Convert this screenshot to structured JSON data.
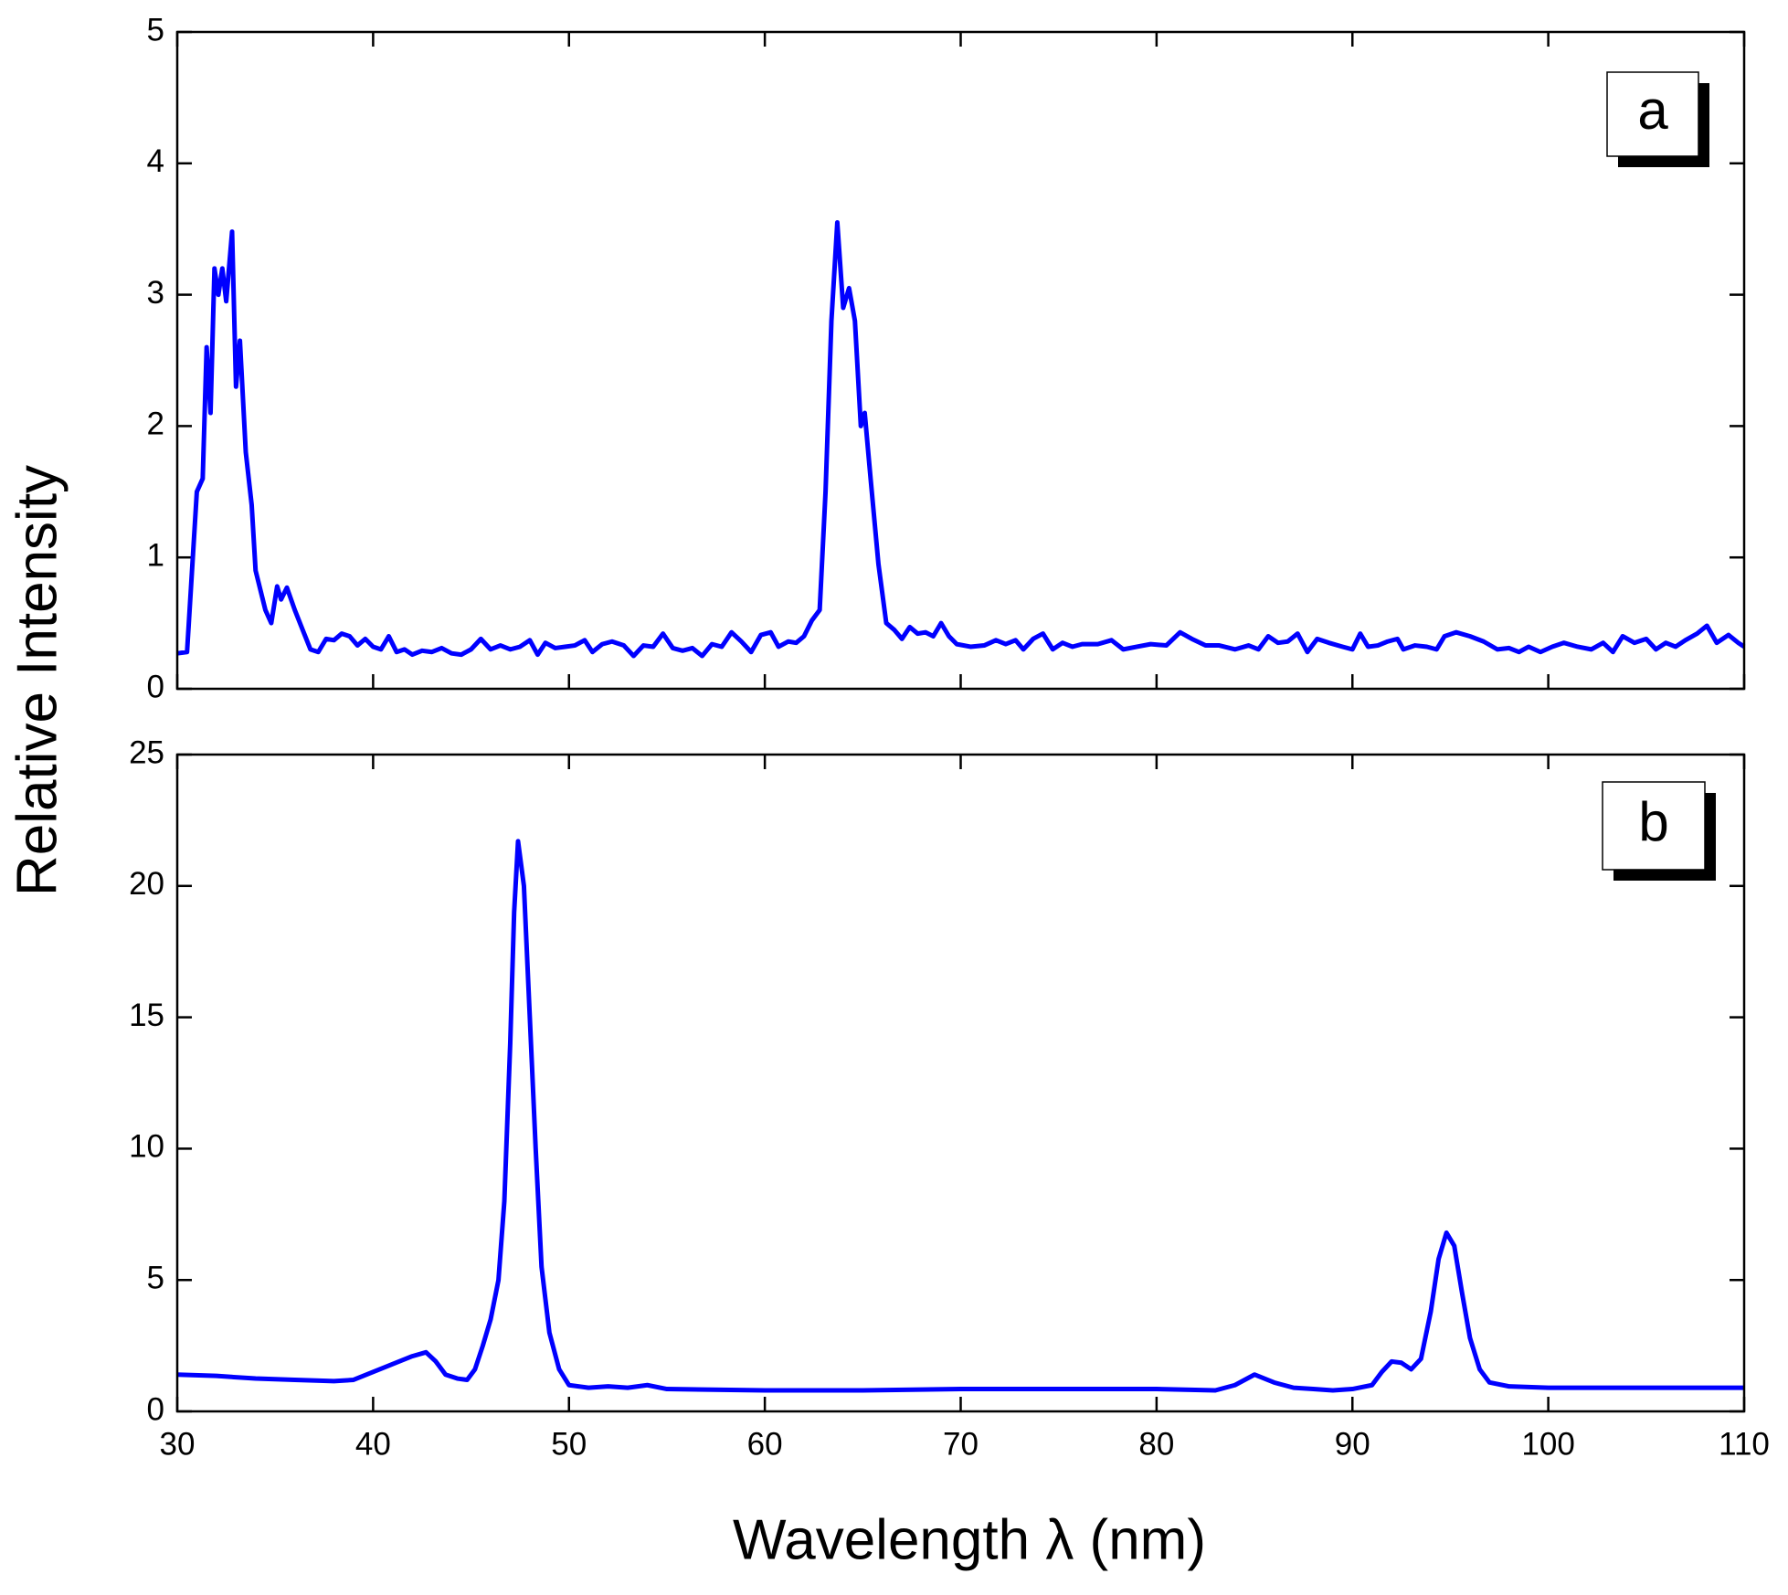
{
  "xlabel": "Wavelength λ (nm)",
  "ylabel": "Relative Intensity",
  "chart_data": [
    {
      "type": "line",
      "annotation": "a",
      "xlim": [
        30,
        110
      ],
      "xticks": [
        30,
        40,
        50,
        60,
        70,
        80,
        90,
        100,
        110
      ],
      "ylim": [
        0,
        5
      ],
      "yticks": [
        0,
        1,
        2,
        3,
        4,
        5
      ],
      "series": [
        {
          "color": "#0000ff",
          "x": [
            30,
            30.5,
            31,
            31.3,
            31.5,
            31.7,
            31.9,
            32.1,
            32.3,
            32.5,
            32.8,
            33,
            33.2,
            33.5,
            33.8,
            34,
            34.5,
            34.8,
            35.1,
            35.3,
            35.6,
            36,
            36.4,
            36.8,
            37.2,
            37.6,
            38,
            38.4,
            38.8,
            39.2,
            39.6,
            40,
            40.4,
            40.8,
            41.2,
            41.6,
            42,
            42.5,
            43,
            43.5,
            44,
            44.5,
            45,
            45.5,
            46,
            46.5,
            47,
            47.5,
            48,
            48.4,
            48.8,
            49.3,
            49.8,
            50.3,
            50.8,
            51.2,
            51.7,
            52.2,
            52.8,
            53.3,
            53.8,
            54.3,
            54.8,
            55.3,
            55.8,
            56.3,
            56.8,
            57.3,
            57.8,
            58.3,
            58.8,
            59.3,
            59.8,
            60.3,
            60.7,
            61.2,
            61.6,
            62,
            62.4,
            62.8,
            63.1,
            63.4,
            63.7,
            64,
            64.3,
            64.6,
            64.9,
            65.1,
            65.4,
            65.8,
            66.2,
            66.6,
            67,
            67.4,
            67.8,
            68.2,
            68.6,
            69,
            69.4,
            69.8,
            70.5,
            71.2,
            71.8,
            72.3,
            72.8,
            73.2,
            73.7,
            74.2,
            74.7,
            75.2,
            75.7,
            76.2,
            77,
            77.7,
            78.3,
            79,
            79.7,
            80.5,
            81.2,
            81.8,
            82.5,
            83.2,
            84,
            84.7,
            85.2,
            85.7,
            86.2,
            86.7,
            87.2,
            87.7,
            88.2,
            88.8,
            89.5,
            90,
            90.4,
            90.8,
            91.3,
            91.8,
            92.3,
            92.6,
            93.2,
            93.8,
            94.3,
            94.7,
            95.3,
            96,
            96.7,
            97.4,
            98,
            98.5,
            99,
            99.6,
            100.2,
            100.8,
            101.5,
            102.2,
            102.8,
            103.3,
            103.8,
            104.4,
            105,
            105.5,
            106,
            106.5,
            107,
            107.6,
            108.1,
            108.6,
            109.2,
            109.7,
            110
          ],
          "values": [
            0.27,
            0.28,
            1.5,
            1.6,
            2.6,
            2.1,
            3.2,
            3.0,
            3.2,
            2.95,
            3.48,
            2.3,
            2.65,
            1.8,
            1.4,
            0.9,
            0.6,
            0.5,
            0.78,
            0.68,
            0.77,
            0.6,
            0.45,
            0.3,
            0.28,
            0.38,
            0.37,
            0.42,
            0.4,
            0.33,
            0.38,
            0.32,
            0.3,
            0.4,
            0.28,
            0.3,
            0.26,
            0.29,
            0.28,
            0.31,
            0.27,
            0.26,
            0.3,
            0.38,
            0.3,
            0.33,
            0.3,
            0.32,
            0.37,
            0.26,
            0.35,
            0.31,
            0.32,
            0.33,
            0.37,
            0.28,
            0.34,
            0.36,
            0.33,
            0.25,
            0.33,
            0.32,
            0.42,
            0.31,
            0.29,
            0.31,
            0.25,
            0.34,
            0.32,
            0.43,
            0.36,
            0.28,
            0.41,
            0.43,
            0.32,
            0.36,
            0.35,
            0.4,
            0.52,
            0.6,
            1.5,
            2.8,
            3.55,
            2.9,
            3.05,
            2.8,
            2.0,
            2.1,
            1.6,
            0.95,
            0.5,
            0.45,
            0.38,
            0.47,
            0.42,
            0.43,
            0.4,
            0.5,
            0.4,
            0.34,
            0.32,
            0.33,
            0.37,
            0.34,
            0.37,
            0.3,
            0.38,
            0.42,
            0.3,
            0.35,
            0.32,
            0.34,
            0.34,
            0.37,
            0.3,
            0.32,
            0.34,
            0.33,
            0.43,
            0.38,
            0.33,
            0.33,
            0.3,
            0.33,
            0.3,
            0.4,
            0.35,
            0.36,
            0.42,
            0.28,
            0.38,
            0.35,
            0.32,
            0.3,
            0.42,
            0.32,
            0.33,
            0.36,
            0.38,
            0.3,
            0.33,
            0.32,
            0.3,
            0.4,
            0.43,
            0.4,
            0.36,
            0.3,
            0.31,
            0.28,
            0.32,
            0.28,
            0.32,
            0.35,
            0.32,
            0.3,
            0.35,
            0.28,
            0.4,
            0.35,
            0.38,
            0.3,
            0.35,
            0.32,
            0.37,
            0.42,
            0.48,
            0.35,
            0.41,
            0.35,
            0.32
          ]
        }
      ]
    },
    {
      "type": "line",
      "annotation": "b",
      "xlim": [
        30,
        110
      ],
      "xticks": [
        30,
        40,
        50,
        60,
        70,
        80,
        90,
        100,
        110
      ],
      "ylim": [
        0,
        25
      ],
      "yticks": [
        0,
        5,
        10,
        15,
        20,
        25
      ],
      "series": [
        {
          "color": "#0000ff",
          "x": [
            30,
            32,
            34,
            36,
            38,
            39,
            40,
            41,
            42,
            42.7,
            43.2,
            43.7,
            44.3,
            44.8,
            45.2,
            45.6,
            46,
            46.4,
            46.7,
            47,
            47.2,
            47.4,
            47.7,
            48,
            48.3,
            48.6,
            49,
            49.5,
            50,
            51,
            52,
            53,
            54,
            55,
            60,
            65,
            70,
            75,
            80,
            83,
            84,
            85,
            86,
            87,
            88,
            89,
            90,
            91,
            91.5,
            92,
            92.5,
            93,
            93.5,
            94,
            94.4,
            94.8,
            95.2,
            95.6,
            96,
            96.5,
            97,
            98,
            100,
            105,
            110
          ],
          "values": [
            1.4,
            1.35,
            1.25,
            1.2,
            1.15,
            1.2,
            1.5,
            1.8,
            2.1,
            2.25,
            1.9,
            1.4,
            1.25,
            1.2,
            1.6,
            2.5,
            3.5,
            5.0,
            8,
            14,
            19,
            21.7,
            20,
            15,
            10,
            5.5,
            3.0,
            1.6,
            1.0,
            0.9,
            0.95,
            0.9,
            1.0,
            0.85,
            0.8,
            0.8,
            0.85,
            0.85,
            0.85,
            0.8,
            1.0,
            1.4,
            1.1,
            0.9,
            0.85,
            0.8,
            0.85,
            1.0,
            1.5,
            1.9,
            1.85,
            1.6,
            2.0,
            3.8,
            5.8,
            6.8,
            6.3,
            4.5,
            2.8,
            1.6,
            1.1,
            0.95,
            0.9,
            0.9,
            0.9
          ]
        }
      ]
    }
  ]
}
